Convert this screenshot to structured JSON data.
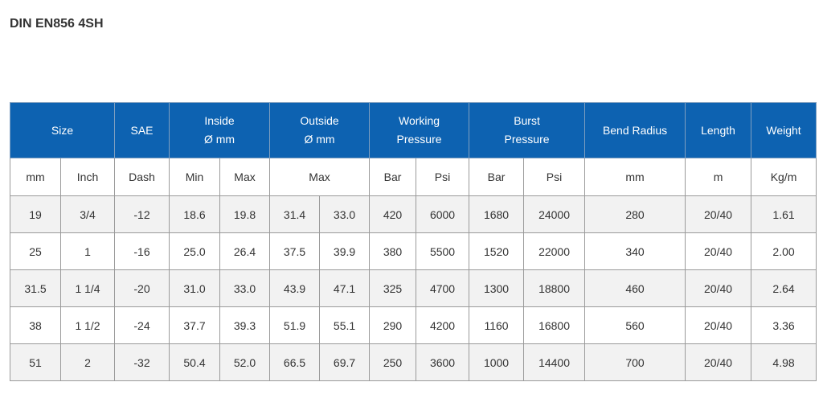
{
  "header": {
    "title": "DIN EN856 4SH"
  },
  "table": {
    "group_header": [
      {
        "lines": [
          "Size"
        ],
        "span": 2
      },
      {
        "lines": [
          "SAE"
        ],
        "span": 1
      },
      {
        "lines": [
          "Inside",
          "Ø mm"
        ],
        "span": 2
      },
      {
        "lines": [
          "Outside",
          "Ø mm"
        ],
        "span": 2
      },
      {
        "lines": [
          "Working",
          "Pressure"
        ],
        "span": 2
      },
      {
        "lines": [
          "Burst",
          "Pressure"
        ],
        "span": 2
      },
      {
        "lines": [
          "Bend Radius"
        ],
        "span": 1
      },
      {
        "lines": [
          "Length"
        ],
        "span": 1
      },
      {
        "lines": [
          "Weight"
        ],
        "span": 1
      }
    ],
    "units": [
      {
        "text": "mm",
        "span": 1
      },
      {
        "text": "Inch",
        "span": 1
      },
      {
        "text": "Dash",
        "span": 1
      },
      {
        "text": "Min",
        "span": 1
      },
      {
        "text": "Max",
        "span": 1
      },
      {
        "text": "Max",
        "span": 2
      },
      {
        "text": "Bar",
        "span": 1
      },
      {
        "text": "Psi",
        "span": 1
      },
      {
        "text": "Bar",
        "span": 1
      },
      {
        "text": "Psi",
        "span": 1
      },
      {
        "text": "mm",
        "span": 1
      },
      {
        "text": "m",
        "span": 1
      },
      {
        "text": "Kg/m",
        "span": 1
      }
    ],
    "rows": [
      [
        "19",
        "3/4",
        "-12",
        "18.6",
        "19.8",
        "31.4",
        "33.0",
        "420",
        "6000",
        "1680",
        "24000",
        "280",
        "20/40",
        "1.61"
      ],
      [
        "25",
        "1",
        "-16",
        "25.0",
        "26.4",
        "37.5",
        "39.9",
        "380",
        "5500",
        "1520",
        "22000",
        "340",
        "20/40",
        "2.00"
      ],
      [
        "31.5",
        "1 1/4",
        "-20",
        "31.0",
        "33.0",
        "43.9",
        "47.1",
        "325",
        "4700",
        "1300",
        "18800",
        "460",
        "20/40",
        "2.64"
      ],
      [
        "38",
        "1 1/2",
        "-24",
        "37.7",
        "39.3",
        "51.9",
        "55.1",
        "290",
        "4200",
        "1160",
        "16800",
        "560",
        "20/40",
        "3.36"
      ],
      [
        "51",
        "2",
        "-32",
        "50.4",
        "52.0",
        "66.5",
        "69.7",
        "250",
        "3600",
        "1000",
        "14400",
        "700",
        "20/40",
        "4.98"
      ]
    ]
  }
}
